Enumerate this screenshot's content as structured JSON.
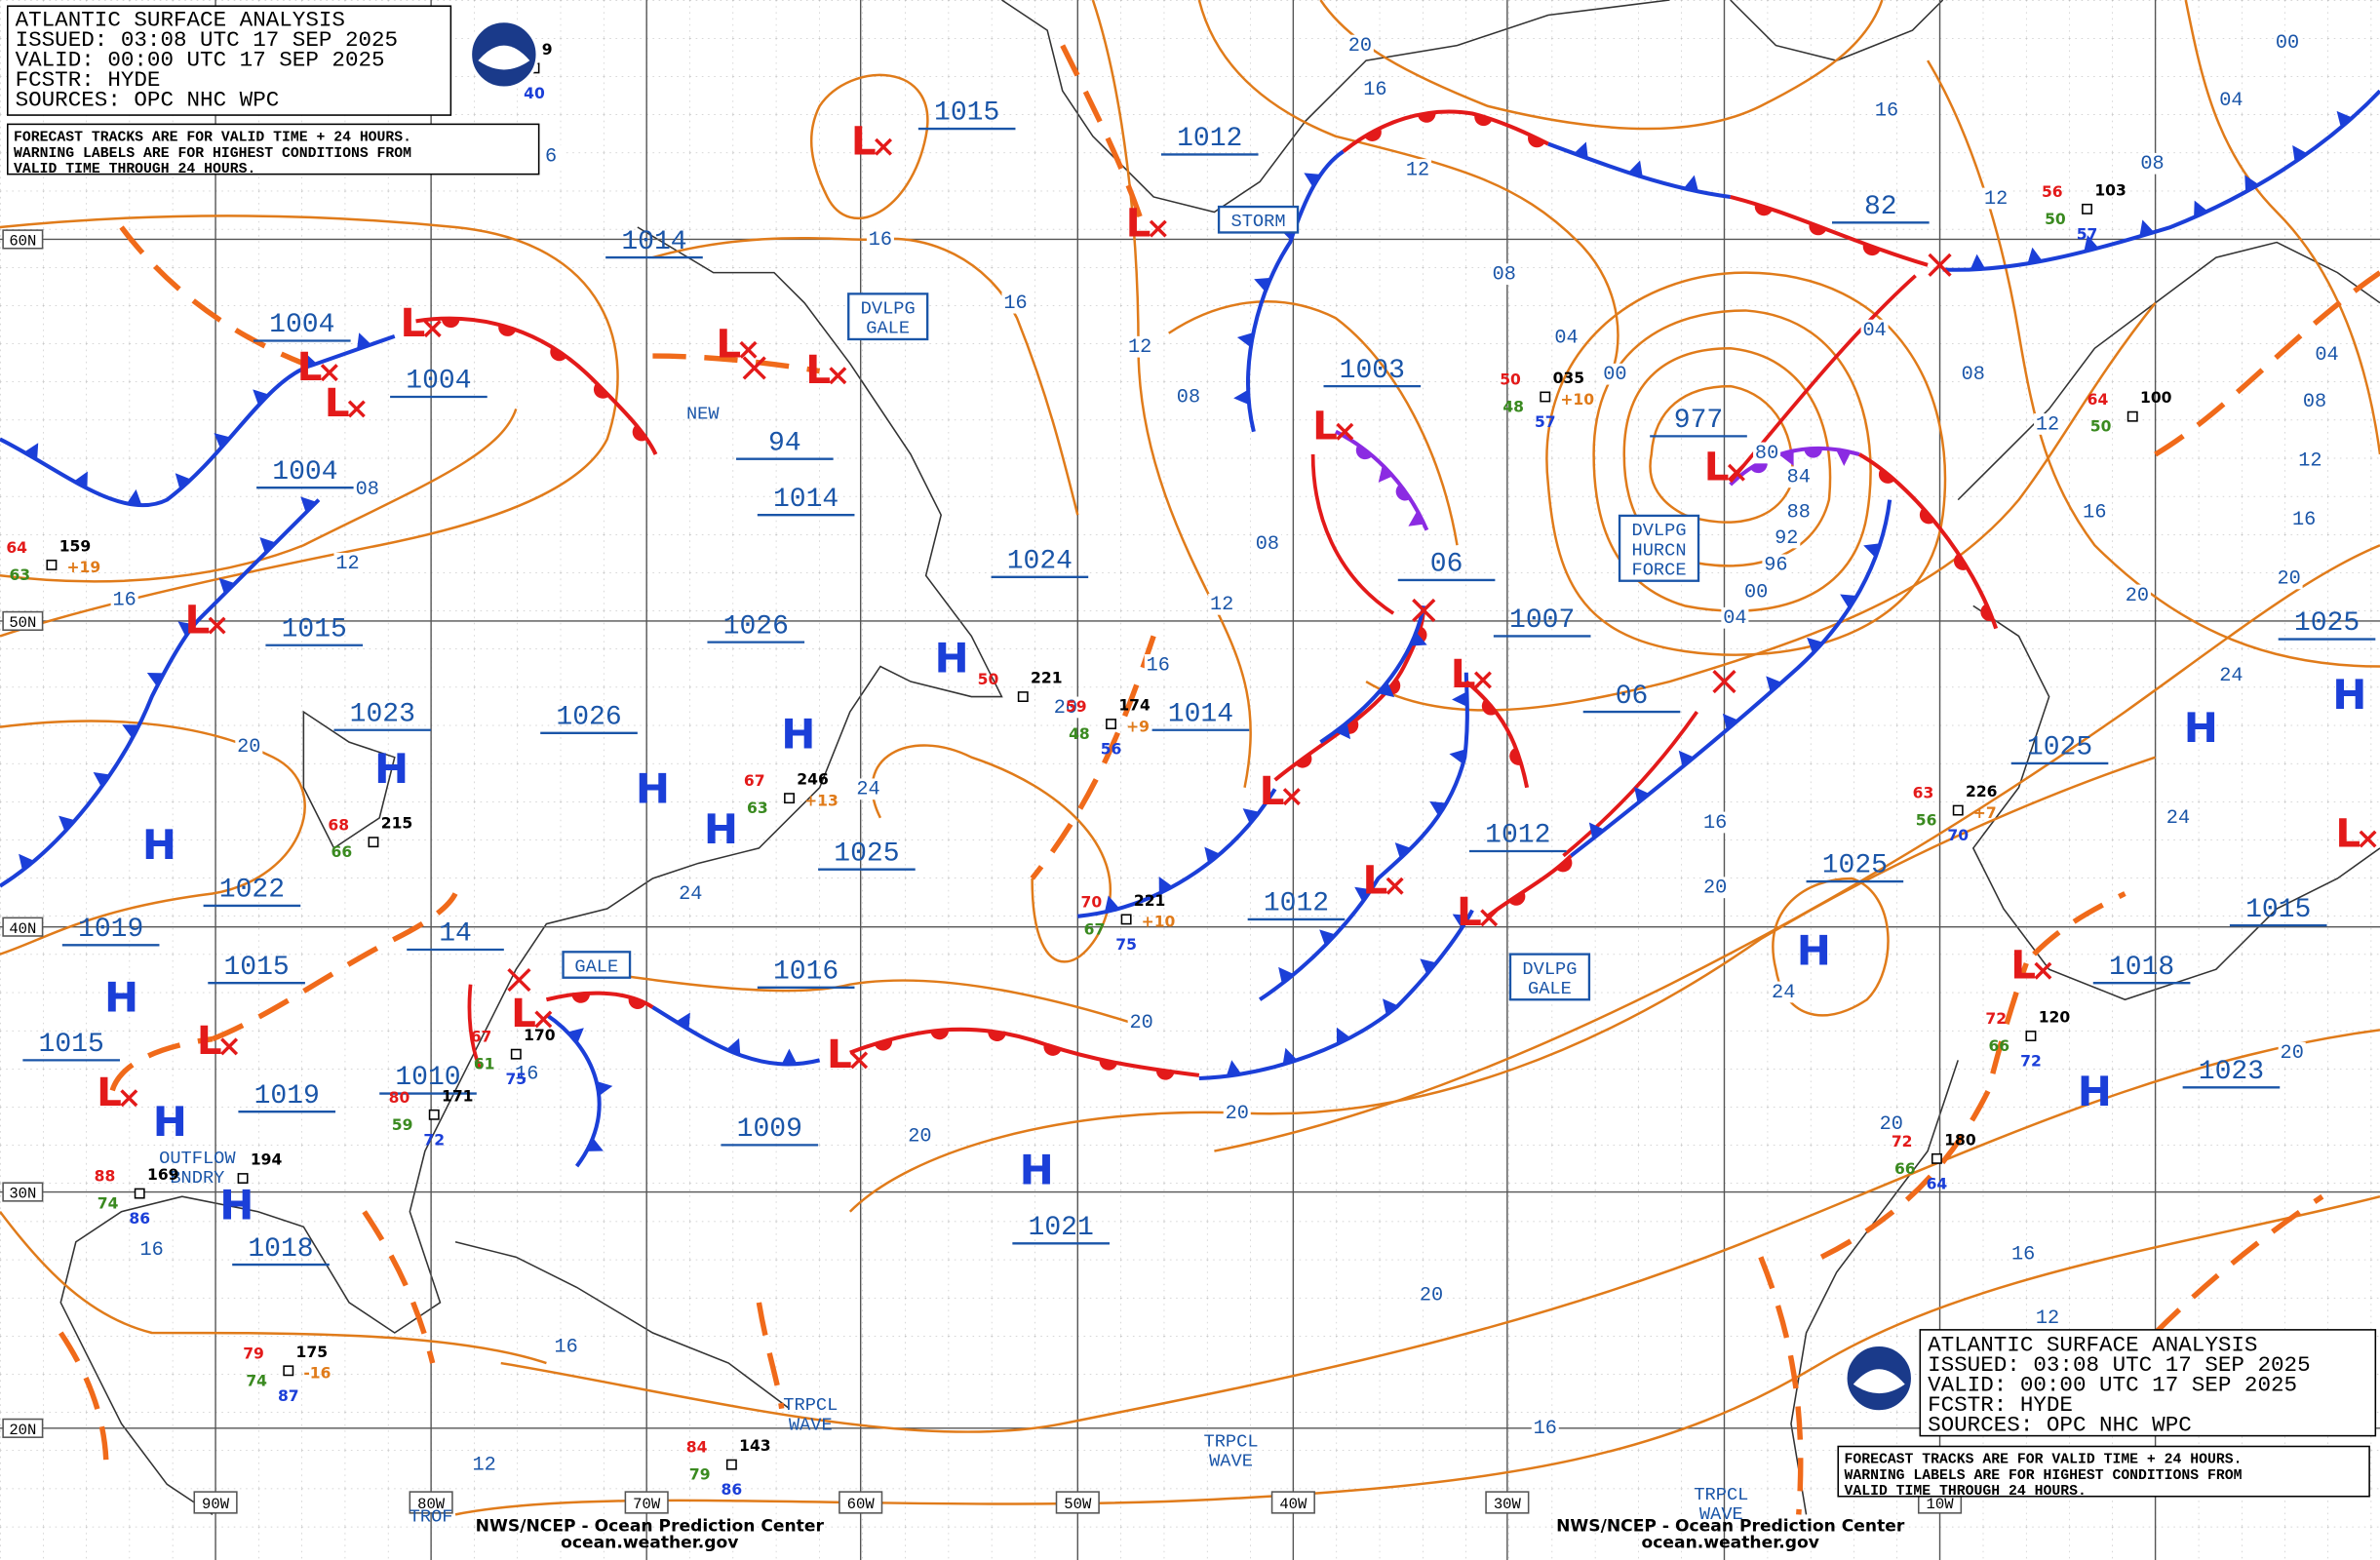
{
  "header": {
    "lines": [
      "ATLANTIC SURFACE ANALYSIS",
      "ISSUED: 03:08 UTC 17 SEP 2025",
      "VALID:  00:00 UTC 17 SEP 2025",
      "FCSTR:  HYDE",
      "SOURCES: OPC NHC WPC"
    ],
    "note": [
      "FORECAST TRACKS ARE FOR VALID TIME + 24 HOURS.",
      "WARNING LABELS ARE FOR HIGHEST CONDITIONS FROM",
      "VALID TIME THROUGH 24 HOURS."
    ]
  },
  "footer": {
    "credit": "NWS/NCEP - Ocean Prediction Center",
    "url": "ocean.weather.gov"
  },
  "latitudes": [
    "60N",
    "50N",
    "40N",
    "30N",
    "20N"
  ],
  "longitudes": [
    "90W",
    "80W",
    "70W",
    "60W",
    "50W",
    "40W",
    "30W",
    "10W"
  ],
  "symbols": {
    "high": "H",
    "low": "L"
  },
  "pressure_centers": [
    "1015",
    "1012",
    "1014",
    "1004",
    "1004",
    "1004",
    "94",
    "1014",
    "1003",
    "977",
    "82",
    "1024",
    "06",
    "1007",
    "1015",
    "1026",
    "1023",
    "1026",
    "1014",
    "06",
    "1025",
    "1025",
    "1025",
    "1012",
    "1012",
    "1022",
    "1019",
    "1015",
    "14",
    "1016",
    "1018",
    "1015",
    "1015",
    "1019",
    "1010",
    "1009",
    "1023",
    "1021",
    "1018",
    "1025"
  ],
  "isobar_labels": [
    "16",
    "16",
    "12",
    "08",
    "08",
    "12",
    "16",
    "08",
    "12",
    "16",
    "20",
    "20",
    "24",
    "24",
    "16",
    "20",
    "20",
    "20",
    "16",
    "20",
    "24",
    "16",
    "16",
    "12",
    "20",
    "16",
    "16",
    "12",
    "20",
    "20",
    "24",
    "24",
    "20",
    "20",
    "16",
    "12",
    "16",
    "12",
    "08",
    "04",
    "08",
    "04",
    "12",
    "16",
    "08",
    "04",
    "00",
    "08",
    "04",
    "00",
    "12",
    "16",
    "20",
    "80",
    "84",
    "88",
    "92",
    "96",
    "00",
    "04",
    "6"
  ],
  "tags": {
    "storm": "STORM",
    "dvlpg": "DVLPG",
    "gale": "GALE",
    "hurcn": "HURCN",
    "force": "FORCE",
    "new": "NEW",
    "outflow": "OUTFLOW",
    "bndry": "BNDRY",
    "trpcl": "TRPCL",
    "wave": "WAVE",
    "trof": "TROF"
  },
  "stations": [
    {
      "temp": "64",
      "pres": "159",
      "tend": "+19",
      "dew": "63"
    },
    {
      "temp": "50",
      "pres": "035",
      "tend": "+10",
      "dew": "48",
      "sst": "57"
    },
    {
      "temp": "56",
      "pres": "103",
      "dew": "50",
      "sst": "57"
    },
    {
      "temp": "64",
      "pres": "100",
      "dew": "50"
    },
    {
      "temp": "50",
      "pres": "221"
    },
    {
      "temp": "59",
      "pres": "174",
      "tend": "+9",
      "dew": "48",
      "sst": "56"
    },
    {
      "temp": "67",
      "pres": "246",
      "tend": "+13",
      "dew": "63"
    },
    {
      "temp": "68",
      "pres": "215",
      "dew": "66"
    },
    {
      "temp": "63",
      "pres": "226",
      "tend": "+7",
      "dew": "56",
      "sst": "70"
    },
    {
      "temp": "70",
      "pres": "221",
      "tend": "+10",
      "dew": "67",
      "sst": "75"
    },
    {
      "temp": "72",
      "pres": "120",
      "dew": "66",
      "sst": "72"
    },
    {
      "temp": "72",
      "pres": "180",
      "dew": "66",
      "sst": "64"
    },
    {
      "temp": "67",
      "pres": "170",
      "dew": "61",
      "sst": "75"
    },
    {
      "temp": "80",
      "pres": "171",
      "dew": "59",
      "sst": "72"
    },
    {
      "temp": "88",
      "pres": "169",
      "dew": "74",
      "sst": "86"
    },
    {
      "pres": "194"
    },
    {
      "temp": "79",
      "pres": "175",
      "tend": "-16",
      "dew": "74",
      "sst": "87"
    },
    {
      "temp": "84",
      "pres": "143",
      "dew": "79",
      "sst": "86"
    },
    {
      "pres": "9",
      "sst": "40"
    }
  ]
}
